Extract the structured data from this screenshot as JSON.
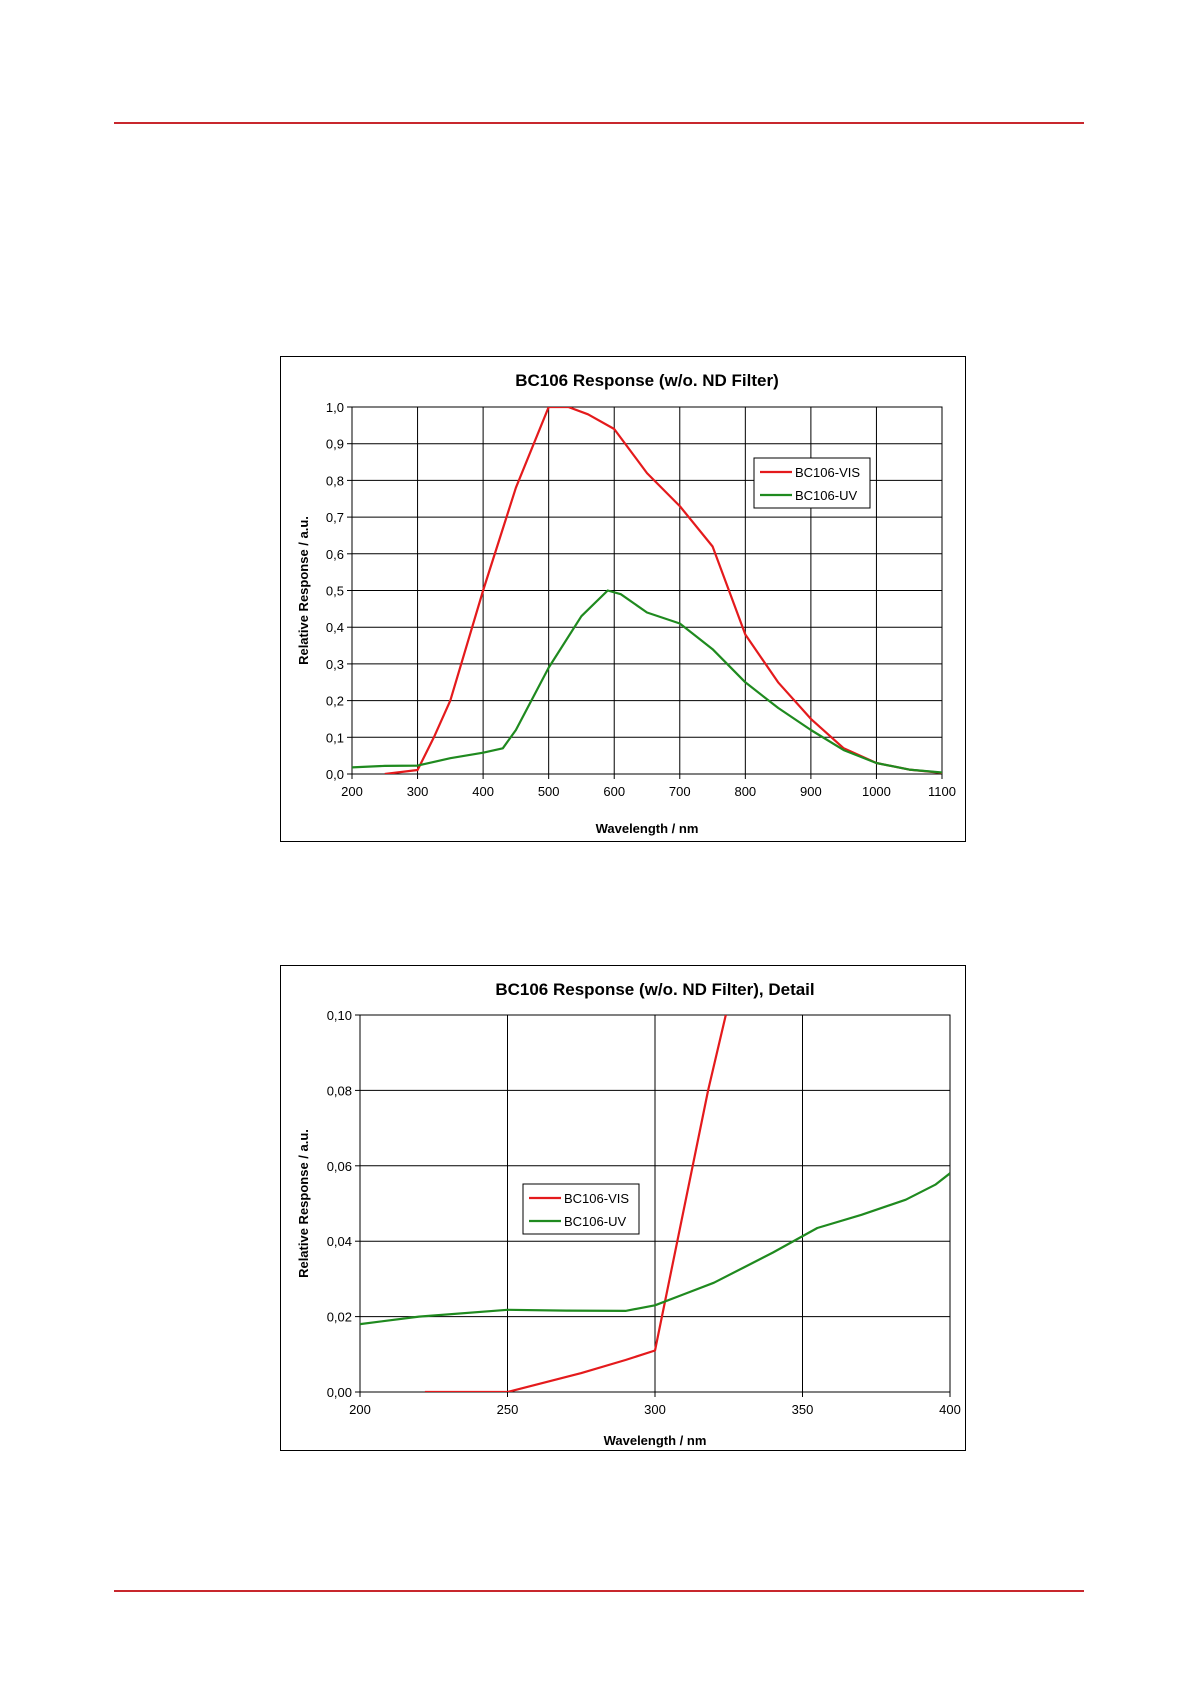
{
  "chart_data": [
    {
      "type": "line",
      "title": "BC106 Response (w/o. ND Filter)",
      "xlabel": "Wavelength / nm",
      "ylabel": "Relative Response / a.u.",
      "xlim": [
        200,
        1100
      ],
      "ylim": [
        0,
        1.0
      ],
      "xticks": [
        "200",
        "300",
        "400",
        "500",
        "600",
        "700",
        "800",
        "900",
        "1000",
        "1100"
      ],
      "yticks": [
        "0,0",
        "0,1",
        "0,2",
        "0,3",
        "0,4",
        "0,5",
        "0,6",
        "0,7",
        "0,8",
        "0,9",
        "1,0"
      ],
      "grid": true,
      "legend_position": "top-right",
      "series": [
        {
          "name": "BC106-VIS",
          "color": "#e41a1c",
          "points": [
            [
              250,
              0.0
            ],
            [
              300,
              0.011
            ],
            [
              325,
              0.1
            ],
            [
              350,
              0.2
            ],
            [
              400,
              0.5
            ],
            [
              450,
              0.78
            ],
            [
              500,
              1.0
            ],
            [
              530,
              1.0
            ],
            [
              560,
              0.98
            ],
            [
              600,
              0.94
            ],
            [
              650,
              0.82
            ],
            [
              700,
              0.73
            ],
            [
              750,
              0.62
            ],
            [
              800,
              0.38
            ],
            [
              850,
              0.25
            ],
            [
              900,
              0.15
            ],
            [
              950,
              0.07
            ],
            [
              1000,
              0.03
            ],
            [
              1050,
              0.012
            ],
            [
              1100,
              0.003
            ]
          ]
        },
        {
          "name": "BC106-UV",
          "color": "#1f8a1f",
          "points": [
            [
              200,
              0.018
            ],
            [
              250,
              0.022
            ],
            [
              300,
              0.023
            ],
            [
              350,
              0.043
            ],
            [
              400,
              0.058
            ],
            [
              430,
              0.07
            ],
            [
              450,
              0.12
            ],
            [
              500,
              0.29
            ],
            [
              550,
              0.43
            ],
            [
              590,
              0.5
            ],
            [
              610,
              0.49
            ],
            [
              650,
              0.44
            ],
            [
              700,
              0.41
            ],
            [
              750,
              0.34
            ],
            [
              800,
              0.25
            ],
            [
              850,
              0.18
            ],
            [
              900,
              0.12
            ],
            [
              950,
              0.065
            ],
            [
              1000,
              0.03
            ],
            [
              1050,
              0.012
            ],
            [
              1100,
              0.004
            ]
          ]
        }
      ]
    },
    {
      "type": "line",
      "title": "BC106 Response (w/o. ND Filter), Detail",
      "xlabel": "Wavelength / nm",
      "ylabel": "Relative Response / a.u.",
      "xlim": [
        200,
        400
      ],
      "ylim": [
        0,
        0.1
      ],
      "xticks": [
        "200",
        "250",
        "300",
        "350",
        "400"
      ],
      "yticks": [
        "0,00",
        "0,02",
        "0,04",
        "0,06",
        "0,08",
        "0,10"
      ],
      "grid": true,
      "legend_position": "center",
      "series": [
        {
          "name": "BC106-VIS",
          "color": "#e41a1c",
          "points": [
            [
              222,
              0.0
            ],
            [
              250,
              0.0
            ],
            [
              275,
              0.005
            ],
            [
              290,
              0.0085
            ],
            [
              300,
              0.011
            ],
            [
              318,
              0.08
            ],
            [
              324,
              0.1
            ]
          ]
        },
        {
          "name": "BC106-UV",
          "color": "#1f8a1f",
          "points": [
            [
              200,
              0.018
            ],
            [
              220,
              0.02
            ],
            [
              250,
              0.0218
            ],
            [
              270,
              0.0216
            ],
            [
              290,
              0.0215
            ],
            [
              300,
              0.023
            ],
            [
              310,
              0.026
            ],
            [
              320,
              0.029
            ],
            [
              330,
              0.033
            ],
            [
              340,
              0.037
            ],
            [
              355,
              0.0435
            ],
            [
              370,
              0.047
            ],
            [
              385,
              0.051
            ],
            [
              395,
              0.055
            ],
            [
              400,
              0.058
            ]
          ]
        }
      ]
    }
  ]
}
